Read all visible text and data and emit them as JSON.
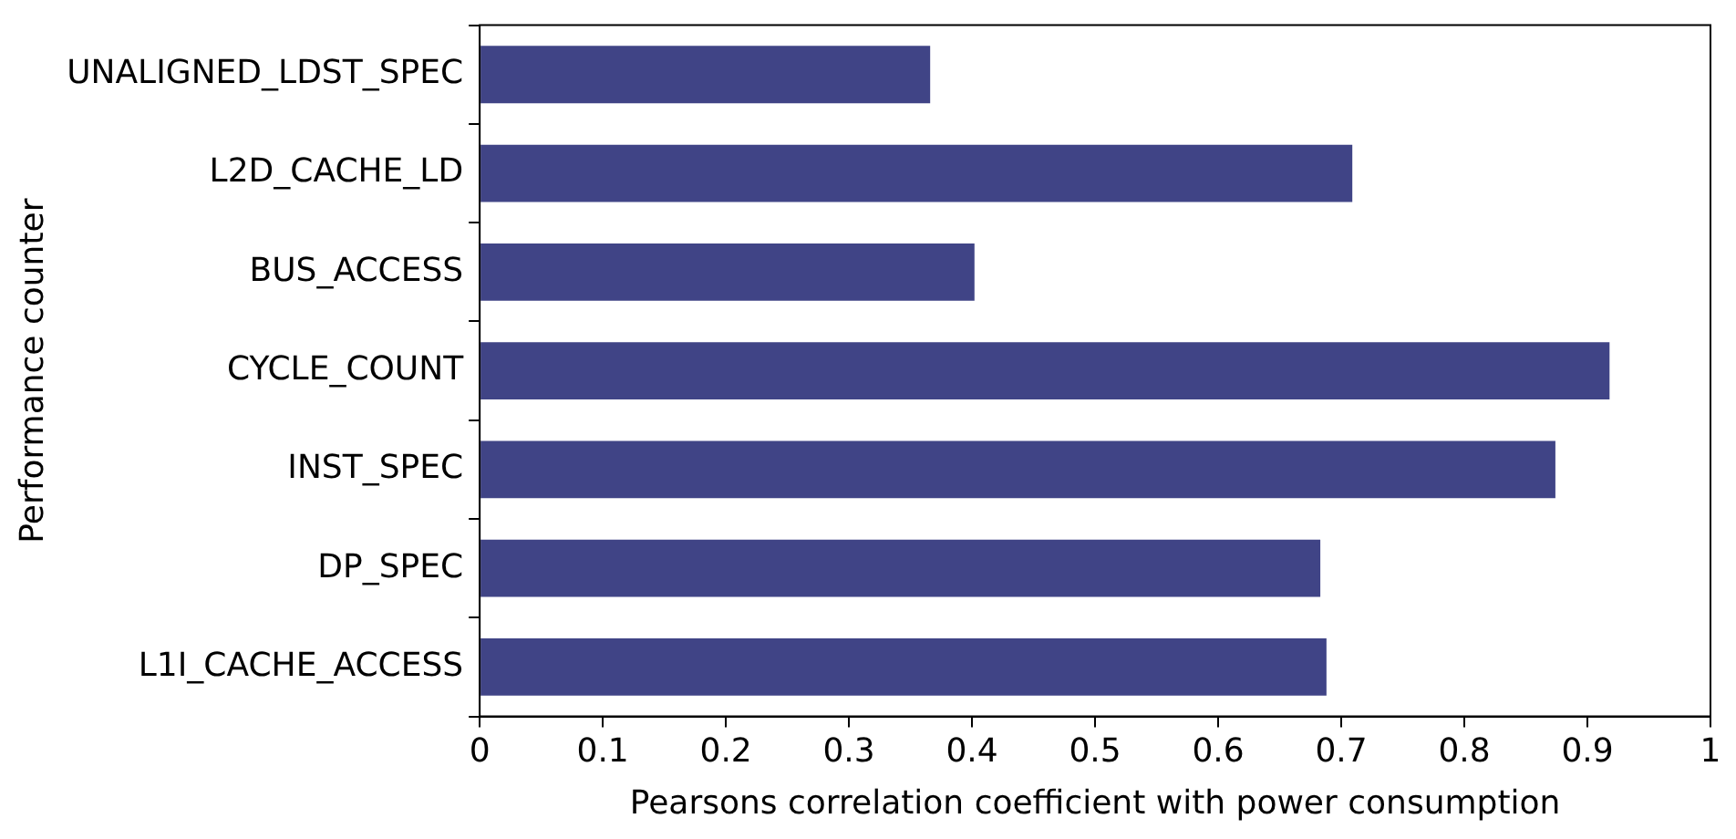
{
  "chart_data": {
    "type": "bar",
    "orientation": "horizontal",
    "xlabel": "Pearsons correlation coefficient with power consumption",
    "ylabel": "Performance counter",
    "categories": [
      "UNALIGNED_LDST_SPEC",
      "L2D_CACHE_LD",
      "BUS_ACCESS",
      "CYCLE_COUNT",
      "INST_SPEC",
      "DP_SPEC",
      "L1I_CACHE_ACCESS"
    ],
    "values": [
      0.366,
      0.709,
      0.402,
      0.918,
      0.874,
      0.683,
      0.688
    ],
    "color": "#404486",
    "xlim": [
      0,
      1
    ],
    "xticks": [
      0,
      0.1,
      0.2,
      0.3,
      0.4,
      0.5,
      0.6,
      0.7,
      0.8,
      0.9,
      1
    ],
    "grid": false,
    "legend": false
  }
}
